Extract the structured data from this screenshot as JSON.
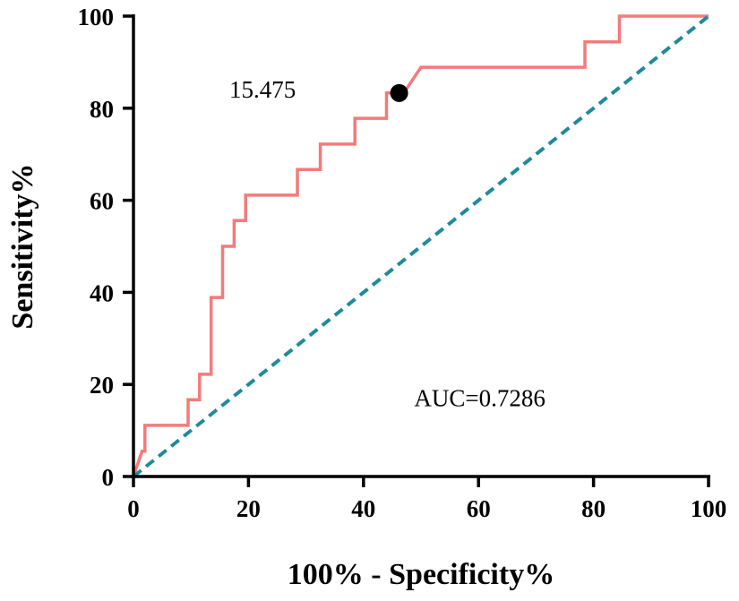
{
  "chart_data": {
    "type": "line",
    "title": "",
    "xlabel": "100% - Specificity%",
    "ylabel": "Sensitivity%",
    "xlim": [
      0,
      100
    ],
    "ylim": [
      0,
      100
    ],
    "xticks": [
      "0",
      "20",
      "40",
      "60",
      "80",
      "100"
    ],
    "yticks": [
      "0",
      "20",
      "40",
      "60",
      "80",
      "100"
    ],
    "grid": false,
    "series": [
      {
        "name": "ROC curve",
        "color": "#f27b7b",
        "x": [
          0,
          1.5,
          2,
          2,
          9.5,
          9.5,
          11.5,
          11.5,
          13.5,
          13.5,
          15.5,
          15.5,
          17.5,
          17.5,
          19.5,
          19.5,
          28.5,
          28.5,
          32.5,
          32.5,
          38.5,
          38.5,
          44,
          44,
          47,
          50,
          78.5,
          78.5,
          84.5,
          84.5,
          100
        ],
        "y": [
          0,
          5.5,
          5.5,
          11.1,
          11.1,
          16.7,
          16.7,
          22.2,
          22.2,
          38.9,
          38.9,
          50,
          50,
          55.6,
          55.6,
          61.1,
          61.1,
          66.7,
          66.7,
          72.2,
          72.2,
          77.8,
          77.8,
          83.3,
          83.3,
          88.9,
          88.9,
          94.4,
          94.4,
          100,
          100
        ]
      },
      {
        "name": "Reference line",
        "color": "#1f8a9a",
        "style": "dashed",
        "x": [
          0,
          100
        ],
        "y": [
          0,
          100
        ]
      }
    ],
    "cutoff_point": {
      "x": 46.2,
      "y": 83.3,
      "label": "15.475"
    },
    "annotations": [
      {
        "text": "AUC=0.7286",
        "x": 58,
        "y": 17
      }
    ]
  },
  "style": {
    "axis_color": "#000000",
    "roc_color": "#f27b7b",
    "diag_color": "#1f8a9a",
    "point_color": "#000000"
  }
}
